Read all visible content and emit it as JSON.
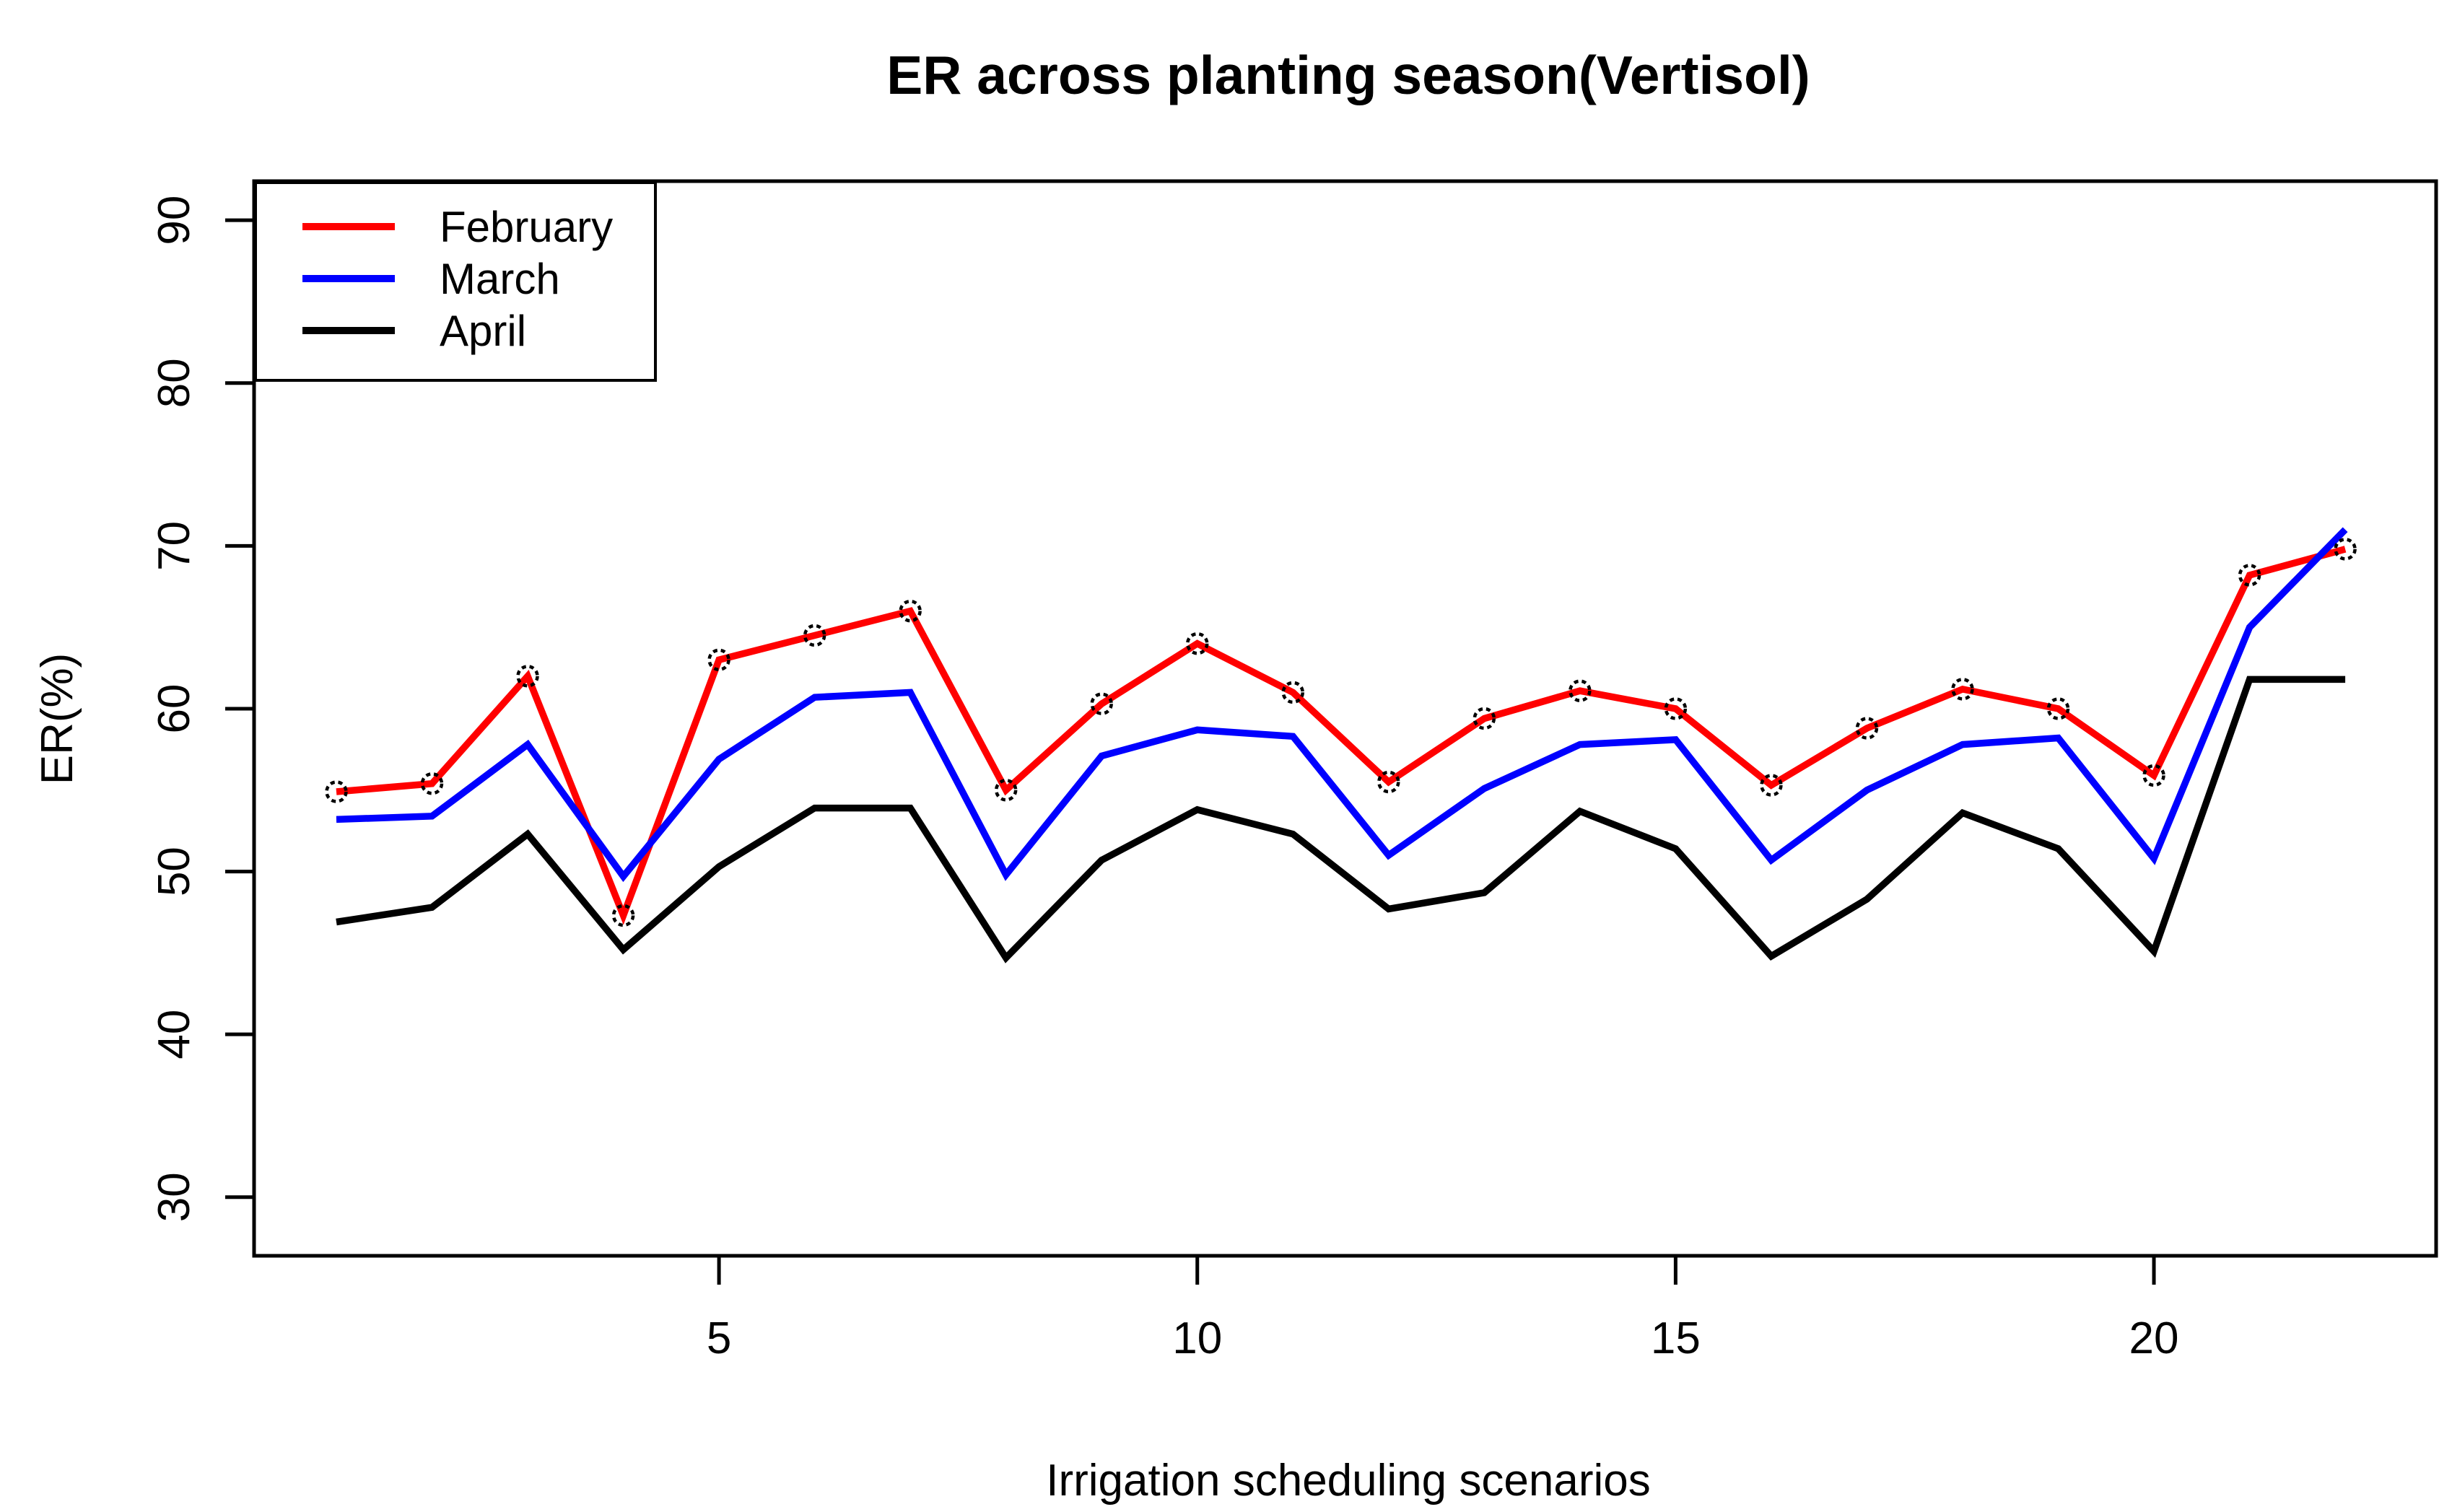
{
  "chart_data": {
    "type": "line",
    "title": "ER across planting season(Vertisol)",
    "xlabel": "Irrigation scheduling scenarios",
    "ylabel": "ER(%)",
    "x": [
      1,
      2,
      3,
      4,
      5,
      6,
      7,
      8,
      9,
      10,
      11,
      12,
      13,
      14,
      15,
      16,
      17,
      18,
      19,
      20,
      21,
      22
    ],
    "x_ticks": [
      5,
      10,
      15,
      20
    ],
    "y_ticks": [
      30,
      40,
      50,
      60,
      70,
      80,
      90
    ],
    "xlim": [
      0.14,
      22.95
    ],
    "ylim": [
      26.4,
      92.4
    ],
    "grid": false,
    "legend_position": "topleft",
    "series": [
      {
        "name": "February",
        "color": "#ff0000",
        "marker": "circle",
        "values": [
          54.9,
          55.4,
          62.0,
          47.3,
          63.0,
          64.5,
          66.0,
          55.0,
          60.3,
          64.0,
          61.0,
          55.5,
          59.4,
          61.1,
          60.0,
          55.3,
          58.8,
          61.2,
          60.0,
          55.9,
          68.2,
          69.8
        ]
      },
      {
        "name": "March",
        "color": "#0000ff",
        "marker": "none",
        "values": [
          53.2,
          53.4,
          57.8,
          49.7,
          56.9,
          60.7,
          61.0,
          49.8,
          57.1,
          58.7,
          58.3,
          51.0,
          55.1,
          57.8,
          58.1,
          50.7,
          55.0,
          57.8,
          58.2,
          50.8,
          65.0,
          71.0
        ]
      },
      {
        "name": "April",
        "color": "#000000",
        "marker": "none",
        "values": [
          46.9,
          47.8,
          52.3,
          45.2,
          50.3,
          53.9,
          53.9,
          44.7,
          50.7,
          53.8,
          52.3,
          47.7,
          48.7,
          53.7,
          51.4,
          44.8,
          48.3,
          53.6,
          51.4,
          45.1,
          61.8,
          61.8
        ]
      }
    ]
  }
}
